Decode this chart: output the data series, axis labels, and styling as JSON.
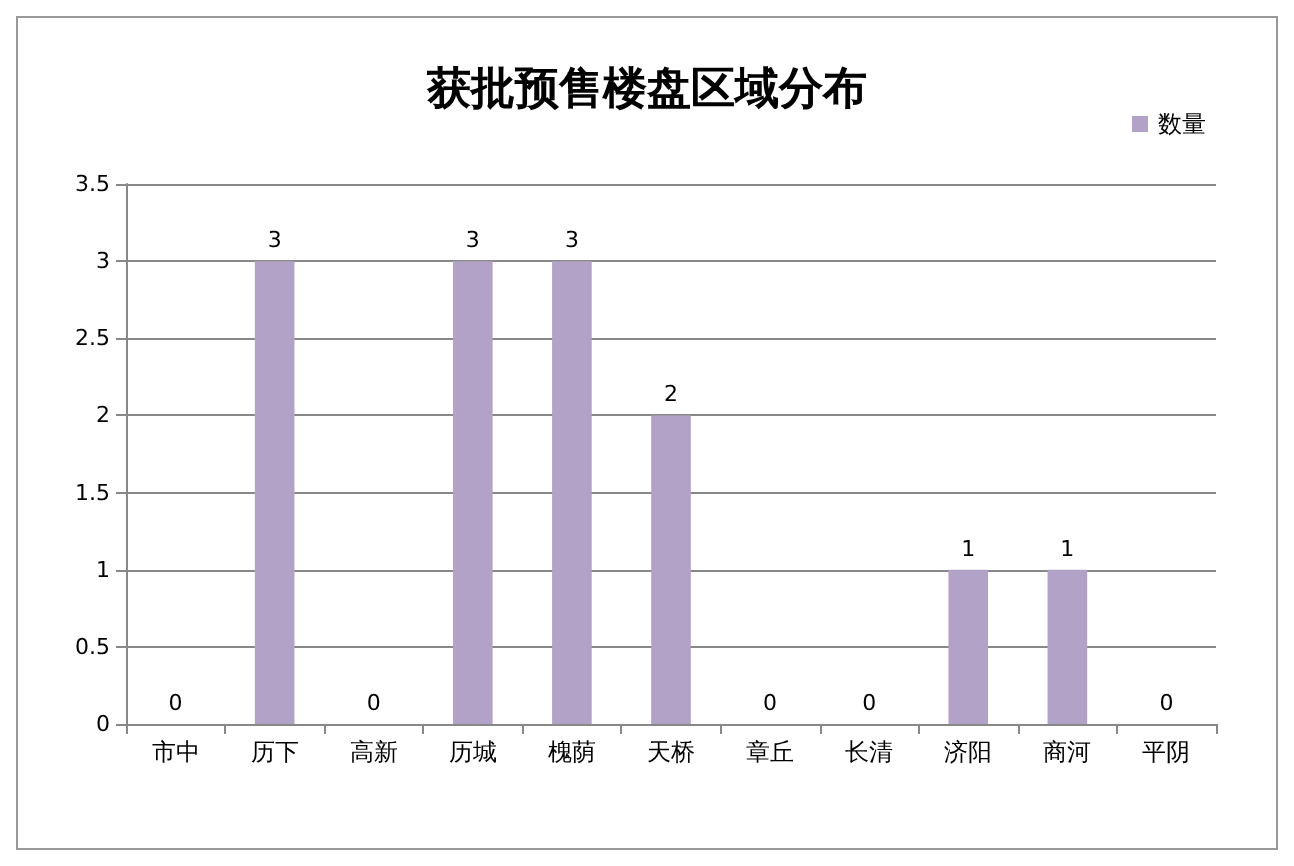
{
  "chart_data": {
    "type": "bar",
    "title": "获批预售楼盘区域分布",
    "categories": [
      "市中",
      "历下",
      "高新",
      "历城",
      "槐荫",
      "天桥",
      "章丘",
      "长清",
      "济阳",
      "商河",
      "平阴"
    ],
    "series": [
      {
        "name": "数量",
        "color": "#b3a2c7",
        "values": [
          0,
          3,
          0,
          3,
          3,
          2,
          0,
          0,
          1,
          1,
          0
        ]
      }
    ],
    "ylim": [
      0,
      3.5
    ],
    "yticks": [
      0,
      0.5,
      1,
      1.5,
      2,
      2.5,
      3,
      3.5
    ],
    "grid": "y",
    "legend": "top right",
    "data_labels": true
  }
}
